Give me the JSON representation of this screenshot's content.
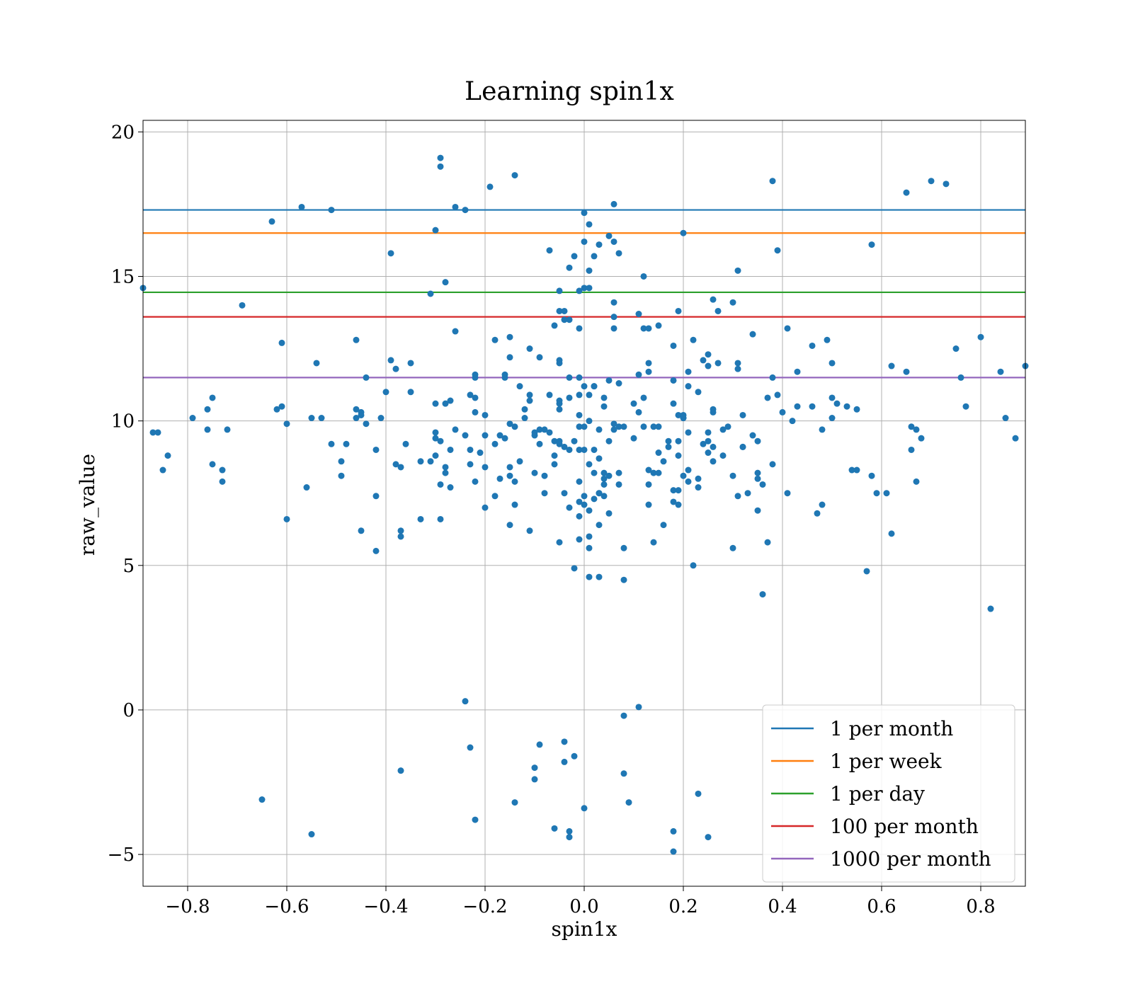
{
  "chart_data": {
    "type": "scatter",
    "title": "Learning spin1x",
    "xlabel": "spin1x",
    "ylabel": "raw_value",
    "xlim": [
      -0.89,
      0.89
    ],
    "ylim": [
      -6.1,
      20.4
    ],
    "xticks": [
      -0.8,
      -0.6,
      -0.4,
      -0.2,
      0.0,
      0.2,
      0.4,
      0.6,
      0.8
    ],
    "xtick_labels": [
      "−0.8",
      "−0.6",
      "−0.4",
      "−0.2",
      "0.0",
      "0.2",
      "0.4",
      "0.6",
      "0.8"
    ],
    "yticks": [
      -5,
      0,
      5,
      10,
      15,
      20
    ],
    "ytick_labels": [
      "−5",
      "0",
      "5",
      "10",
      "15",
      "20"
    ],
    "grid": true,
    "legend_position": "bottom-right",
    "point_color": "#1f77b4",
    "hlines": [
      {
        "name": "1 per month",
        "y": 17.3,
        "color": "#1f77b4"
      },
      {
        "name": "1 per week",
        "y": 16.5,
        "color": "#ff7f0e"
      },
      {
        "name": "1 per day",
        "y": 14.45,
        "color": "#2ca02c"
      },
      {
        "name": "100 per month",
        "y": 13.6,
        "color": "#d62728"
      },
      {
        "name": "1000 per month",
        "y": 11.5,
        "color": "#9467bd"
      }
    ],
    "points": [
      [
        -0.89,
        14.6
      ],
      [
        -0.85,
        8.3
      ],
      [
        -0.84,
        8.8
      ],
      [
        -0.86,
        9.6
      ],
      [
        -0.87,
        9.6
      ],
      [
        -0.79,
        10.1
      ],
      [
        -0.76,
        10.4
      ],
      [
        -0.75,
        10.8
      ],
      [
        -0.76,
        9.7
      ],
      [
        -0.75,
        8.5
      ],
      [
        -0.73,
        8.3
      ],
      [
        -0.73,
        7.9
      ],
      [
        -0.72,
        9.7
      ],
      [
        -0.69,
        14.0
      ],
      [
        -0.65,
        -3.1
      ],
      [
        -0.63,
        16.9
      ],
      [
        -0.62,
        10.4
      ],
      [
        -0.61,
        12.7
      ],
      [
        -0.61,
        10.5
      ],
      [
        -0.6,
        9.9
      ],
      [
        -0.6,
        6.6
      ],
      [
        -0.57,
        17.4
      ],
      [
        -0.56,
        7.7
      ],
      [
        -0.55,
        10.1
      ],
      [
        -0.55,
        -4.3
      ],
      [
        -0.54,
        12.0
      ],
      [
        -0.53,
        10.1
      ],
      [
        -0.51,
        17.3
      ],
      [
        -0.51,
        9.2
      ],
      [
        -0.49,
        8.1
      ],
      [
        -0.49,
        8.6
      ],
      [
        -0.48,
        9.2
      ],
      [
        -0.46,
        12.8
      ],
      [
        -0.46,
        10.4
      ],
      [
        -0.46,
        10.1
      ],
      [
        -0.45,
        10.3
      ],
      [
        -0.45,
        10.2
      ],
      [
        -0.44,
        9.9
      ],
      [
        -0.44,
        11.5
      ],
      [
        -0.45,
        6.2
      ],
      [
        -0.42,
        9.0
      ],
      [
        -0.42,
        7.4
      ],
      [
        -0.42,
        5.5
      ],
      [
        -0.41,
        10.1
      ],
      [
        -0.4,
        11.0
      ],
      [
        -0.39,
        15.8
      ],
      [
        -0.39,
        12.1
      ],
      [
        -0.38,
        11.8
      ],
      [
        -0.38,
        8.5
      ],
      [
        -0.37,
        8.4
      ],
      [
        -0.37,
        6.2
      ],
      [
        -0.37,
        6.0
      ],
      [
        -0.36,
        9.2
      ],
      [
        -0.37,
        -2.1
      ],
      [
        -0.35,
        12.0
      ],
      [
        -0.35,
        11.0
      ],
      [
        -0.33,
        8.6
      ],
      [
        -0.33,
        6.6
      ],
      [
        -0.31,
        8.6
      ],
      [
        -0.31,
        14.4
      ],
      [
        -0.3,
        16.6
      ],
      [
        -0.3,
        10.6
      ],
      [
        -0.3,
        9.6
      ],
      [
        -0.3,
        9.4
      ],
      [
        -0.3,
        8.8
      ],
      [
        -0.29,
        19.1
      ],
      [
        -0.29,
        18.8
      ],
      [
        -0.29,
        9.3
      ],
      [
        -0.29,
        7.8
      ],
      [
        -0.29,
        6.6
      ],
      [
        -0.28,
        14.8
      ],
      [
        -0.28,
        10.6
      ],
      [
        -0.28,
        8.4
      ],
      [
        -0.28,
        8.2
      ],
      [
        -0.27,
        7.7
      ],
      [
        -0.27,
        10.7
      ],
      [
        -0.27,
        9.0
      ],
      [
        -0.26,
        17.4
      ],
      [
        -0.26,
        13.1
      ],
      [
        -0.26,
        9.7
      ],
      [
        -0.24,
        17.3
      ],
      [
        -0.24,
        9.5
      ],
      [
        -0.23,
        10.9
      ],
      [
        -0.23,
        9.0
      ],
      [
        -0.23,
        8.5
      ],
      [
        -0.22,
        10.8
      ],
      [
        -0.22,
        7.9
      ],
      [
        -0.22,
        11.6
      ],
      [
        -0.22,
        11.5
      ],
      [
        -0.22,
        10.3
      ],
      [
        -0.21,
        8.9
      ],
      [
        -0.2,
        10.2
      ],
      [
        -0.2,
        9.5
      ],
      [
        -0.2,
        8.4
      ],
      [
        -0.2,
        7.0
      ],
      [
        -0.24,
        0.3
      ],
      [
        -0.23,
        -1.3
      ],
      [
        -0.22,
        -3.8
      ],
      [
        -0.19,
        18.1
      ],
      [
        -0.18,
        12.8
      ],
      [
        -0.18,
        9.2
      ],
      [
        -0.18,
        7.4
      ],
      [
        -0.17,
        9.5
      ],
      [
        -0.17,
        8.0
      ],
      [
        -0.16,
        11.6
      ],
      [
        -0.16,
        11.5
      ],
      [
        -0.16,
        9.4
      ],
      [
        -0.15,
        12.9
      ],
      [
        -0.15,
        12.2
      ],
      [
        -0.15,
        9.9
      ],
      [
        -0.15,
        8.4
      ],
      [
        -0.15,
        8.1
      ],
      [
        -0.15,
        6.4
      ],
      [
        -0.14,
        18.5
      ],
      [
        -0.14,
        9.8
      ],
      [
        -0.14,
        7.9
      ],
      [
        -0.14,
        7.1
      ],
      [
        -0.13,
        11.2
      ],
      [
        -0.13,
        8.6
      ],
      [
        -0.12,
        10.4
      ],
      [
        -0.12,
        10.1
      ],
      [
        -0.11,
        12.5
      ],
      [
        -0.11,
        10.7
      ],
      [
        -0.11,
        10.9
      ],
      [
        -0.1,
        9.6
      ],
      [
        -0.1,
        9.5
      ],
      [
        -0.1,
        8.2
      ],
      [
        -0.11,
        6.2
      ],
      [
        -0.09,
        12.2
      ],
      [
        -0.09,
        9.7
      ],
      [
        -0.09,
        9.2
      ],
      [
        -0.08,
        8.1
      ],
      [
        -0.08,
        7.5
      ],
      [
        -0.08,
        9.7
      ],
      [
        -0.14,
        -3.2
      ],
      [
        -0.1,
        -2.0
      ],
      [
        -0.1,
        -2.4
      ],
      [
        -0.09,
        -1.2
      ],
      [
        -0.07,
        15.9
      ],
      [
        -0.07,
        10.9
      ],
      [
        -0.07,
        9.6
      ],
      [
        -0.06,
        9.3
      ],
      [
        -0.06,
        8.8
      ],
      [
        -0.06,
        8.5
      ],
      [
        -0.06,
        13.3
      ],
      [
        -0.05,
        13.8
      ],
      [
        -0.05,
        14.5
      ],
      [
        -0.05,
        12.1
      ],
      [
        -0.05,
        12.0
      ],
      [
        -0.05,
        10.6
      ],
      [
        -0.05,
        10.4
      ],
      [
        -0.05,
        10.7
      ],
      [
        -0.05,
        9.3
      ],
      [
        -0.05,
        9.2
      ],
      [
        -0.04,
        13.8
      ],
      [
        -0.04,
        13.5
      ],
      [
        -0.04,
        9.1
      ],
      [
        -0.04,
        7.5
      ],
      [
        -0.05,
        5.8
      ],
      [
        -0.04,
        -1.1
      ],
      [
        -0.04,
        -1.8
      ],
      [
        -0.06,
        -4.1
      ],
      [
        -0.03,
        15.3
      ],
      [
        -0.03,
        13.5
      ],
      [
        -0.03,
        11.5
      ],
      [
        -0.03,
        10.8
      ],
      [
        -0.03,
        9.0
      ],
      [
        -0.03,
        7.0
      ],
      [
        -0.02,
        15.7
      ],
      [
        -0.02,
        9.3
      ],
      [
        -0.02,
        4.9
      ],
      [
        -0.02,
        -1.6
      ],
      [
        -0.03,
        -4.2
      ],
      [
        -0.03,
        -4.4
      ],
      [
        -0.01,
        14.5
      ],
      [
        -0.01,
        13.2
      ],
      [
        -0.01,
        11.5
      ],
      [
        -0.01,
        10.2
      ],
      [
        -0.01,
        10.9
      ],
      [
        -0.01,
        9.8
      ],
      [
        -0.01,
        9.0
      ],
      [
        -0.01,
        7.9
      ],
      [
        -0.01,
        7.2
      ],
      [
        -0.01,
        6.7
      ],
      [
        -0.01,
        5.9
      ],
      [
        0.0,
        17.2
      ],
      [
        0.0,
        16.2
      ],
      [
        0.0,
        14.6
      ],
      [
        0.0,
        11.2
      ],
      [
        0.0,
        9.8
      ],
      [
        0.0,
        9.0
      ],
      [
        0.0,
        7.4
      ],
      [
        0.0,
        7.1
      ],
      [
        0.0,
        -3.4
      ],
      [
        0.01,
        16.8
      ],
      [
        0.01,
        15.2
      ],
      [
        0.01,
        14.6
      ],
      [
        0.01,
        10.0
      ],
      [
        0.01,
        10.9
      ],
      [
        0.01,
        8.5
      ],
      [
        0.01,
        6.9
      ],
      [
        0.01,
        6.0
      ],
      [
        0.01,
        5.6
      ],
      [
        0.01,
        4.6
      ],
      [
        0.02,
        15.7
      ],
      [
        0.02,
        11.2
      ],
      [
        0.02,
        9.0
      ],
      [
        0.02,
        8.2
      ],
      [
        0.02,
        7.3
      ],
      [
        0.02,
        11.2
      ],
      [
        0.03,
        9.7
      ],
      [
        0.03,
        8.7
      ],
      [
        0.03,
        7.5
      ],
      [
        0.03,
        6.4
      ],
      [
        0.03,
        7.5
      ],
      [
        0.03,
        4.6
      ],
      [
        0.03,
        16.1
      ],
      [
        0.04,
        8.0
      ],
      [
        0.04,
        7.8
      ],
      [
        0.04,
        8.2
      ],
      [
        0.04,
        7.4
      ],
      [
        0.04,
        10.8
      ],
      [
        0.04,
        10.5
      ],
      [
        0.05,
        16.4
      ],
      [
        0.05,
        11.4
      ],
      [
        0.05,
        8.1
      ],
      [
        0.05,
        6.8
      ],
      [
        0.05,
        9.3
      ],
      [
        0.06,
        17.5
      ],
      [
        0.06,
        16.2
      ],
      [
        0.06,
        14.1
      ],
      [
        0.06,
        13.6
      ],
      [
        0.06,
        9.9
      ],
      [
        0.06,
        9.7
      ],
      [
        0.06,
        13.2
      ],
      [
        0.07,
        15.8
      ],
      [
        0.07,
        11.3
      ],
      [
        0.07,
        9.8
      ],
      [
        0.07,
        8.2
      ],
      [
        0.07,
        7.8
      ],
      [
        0.08,
        -0.2
      ],
      [
        0.08,
        -2.2
      ],
      [
        0.08,
        4.5
      ],
      [
        0.08,
        9.8
      ],
      [
        0.08,
        5.6
      ],
      [
        0.09,
        -3.2
      ],
      [
        0.1,
        10.6
      ],
      [
        0.1,
        9.4
      ],
      [
        0.11,
        13.7
      ],
      [
        0.11,
        11.6
      ],
      [
        0.11,
        10.3
      ],
      [
        0.11,
        0.1
      ],
      [
        0.12,
        13.2
      ],
      [
        0.12,
        10.8
      ],
      [
        0.12,
        9.8
      ],
      [
        0.12,
        15.0
      ],
      [
        0.13,
        12.0
      ],
      [
        0.13,
        11.7
      ],
      [
        0.13,
        13.2
      ],
      [
        0.13,
        8.3
      ],
      [
        0.13,
        7.8
      ],
      [
        0.13,
        7.1
      ],
      [
        0.14,
        8.2
      ],
      [
        0.14,
        5.8
      ],
      [
        0.14,
        9.8
      ],
      [
        0.15,
        13.3
      ],
      [
        0.15,
        8.9
      ],
      [
        0.15,
        8.2
      ],
      [
        0.15,
        9.8
      ],
      [
        0.16,
        8.6
      ],
      [
        0.16,
        6.4
      ],
      [
        0.17,
        9.3
      ],
      [
        0.17,
        9.1
      ],
      [
        0.18,
        12.6
      ],
      [
        0.18,
        11.4
      ],
      [
        0.18,
        10.6
      ],
      [
        0.18,
        7.6
      ],
      [
        0.18,
        7.2
      ],
      [
        0.19,
        13.8
      ],
      [
        0.19,
        10.2
      ],
      [
        0.19,
        9.3
      ],
      [
        0.19,
        8.8
      ],
      [
        0.19,
        7.6
      ],
      [
        0.19,
        7.1
      ],
      [
        0.2,
        16.5
      ],
      [
        0.2,
        10.1
      ],
      [
        0.2,
        10.1
      ],
      [
        0.2,
        10.2
      ],
      [
        0.2,
        8.1
      ],
      [
        0.21,
        11.7
      ],
      [
        0.21,
        11.2
      ],
      [
        0.21,
        9.6
      ],
      [
        0.21,
        8.3
      ],
      [
        0.21,
        7.9
      ],
      [
        0.22,
        12.8
      ],
      [
        0.22,
        5.0
      ],
      [
        0.18,
        -4.2
      ],
      [
        0.18,
        -4.9
      ],
      [
        0.23,
        -2.9
      ],
      [
        0.25,
        -4.4
      ],
      [
        0.23,
        11.0
      ],
      [
        0.23,
        8.0
      ],
      [
        0.23,
        7.7
      ],
      [
        0.24,
        9.2
      ],
      [
        0.24,
        12.1
      ],
      [
        0.25,
        12.3
      ],
      [
        0.25,
        11.9
      ],
      [
        0.25,
        9.6
      ],
      [
        0.25,
        9.3
      ],
      [
        0.25,
        8.9
      ],
      [
        0.26,
        14.2
      ],
      [
        0.26,
        10.4
      ],
      [
        0.26,
        10.3
      ],
      [
        0.26,
        9.1
      ],
      [
        0.26,
        8.6
      ],
      [
        0.27,
        13.8
      ],
      [
        0.27,
        12.0
      ],
      [
        0.28,
        9.7
      ],
      [
        0.28,
        8.8
      ],
      [
        0.29,
        9.8
      ],
      [
        0.3,
        14.1
      ],
      [
        0.3,
        8.1
      ],
      [
        0.3,
        5.6
      ],
      [
        0.31,
        15.2
      ],
      [
        0.31,
        12.0
      ],
      [
        0.31,
        11.8
      ],
      [
        0.31,
        7.4
      ],
      [
        0.32,
        10.2
      ],
      [
        0.32,
        9.1
      ],
      [
        0.32,
        9.1
      ],
      [
        0.33,
        7.5
      ],
      [
        0.34,
        13.0
      ],
      [
        0.34,
        9.5
      ],
      [
        0.35,
        8.2
      ],
      [
        0.35,
        8.0
      ],
      [
        0.35,
        6.9
      ],
      [
        0.35,
        9.3
      ],
      [
        0.36,
        7.8
      ],
      [
        0.36,
        4.0
      ],
      [
        0.37,
        10.8
      ],
      [
        0.37,
        5.8
      ],
      [
        0.38,
        18.3
      ],
      [
        0.38,
        11.5
      ],
      [
        0.38,
        8.5
      ],
      [
        0.39,
        15.9
      ],
      [
        0.39,
        10.9
      ],
      [
        0.4,
        10.3
      ],
      [
        0.41,
        13.2
      ],
      [
        0.41,
        7.5
      ],
      [
        0.42,
        10.0
      ],
      [
        0.43,
        11.7
      ],
      [
        0.43,
        10.5
      ],
      [
        0.46,
        12.6
      ],
      [
        0.46,
        10.5
      ],
      [
        0.47,
        6.8
      ],
      [
        0.48,
        7.1
      ],
      [
        0.48,
        9.7
      ],
      [
        0.49,
        12.8
      ],
      [
        0.5,
        12.0
      ],
      [
        0.5,
        10.8
      ],
      [
        0.5,
        10.1
      ],
      [
        0.51,
        10.6
      ],
      [
        0.53,
        10.5
      ],
      [
        0.54,
        8.3
      ],
      [
        0.55,
        8.3
      ],
      [
        0.55,
        10.4
      ],
      [
        0.57,
        4.8
      ],
      [
        0.58,
        16.1
      ],
      [
        0.58,
        8.1
      ],
      [
        0.59,
        7.5
      ],
      [
        0.61,
        7.5
      ],
      [
        0.62,
        6.1
      ],
      [
        0.62,
        11.9
      ],
      [
        0.65,
        17.9
      ],
      [
        0.65,
        11.7
      ],
      [
        0.66,
        9.8
      ],
      [
        0.66,
        9.0
      ],
      [
        0.67,
        9.7
      ],
      [
        0.67,
        7.9
      ],
      [
        0.68,
        9.4
      ],
      [
        0.7,
        18.3
      ],
      [
        0.73,
        18.2
      ],
      [
        0.75,
        12.5
      ],
      [
        0.76,
        11.5
      ],
      [
        0.77,
        10.5
      ],
      [
        0.8,
        12.9
      ],
      [
        0.82,
        3.5
      ],
      [
        0.84,
        11.7
      ],
      [
        0.85,
        10.1
      ],
      [
        0.87,
        9.4
      ],
      [
        0.89,
        11.9
      ]
    ]
  }
}
